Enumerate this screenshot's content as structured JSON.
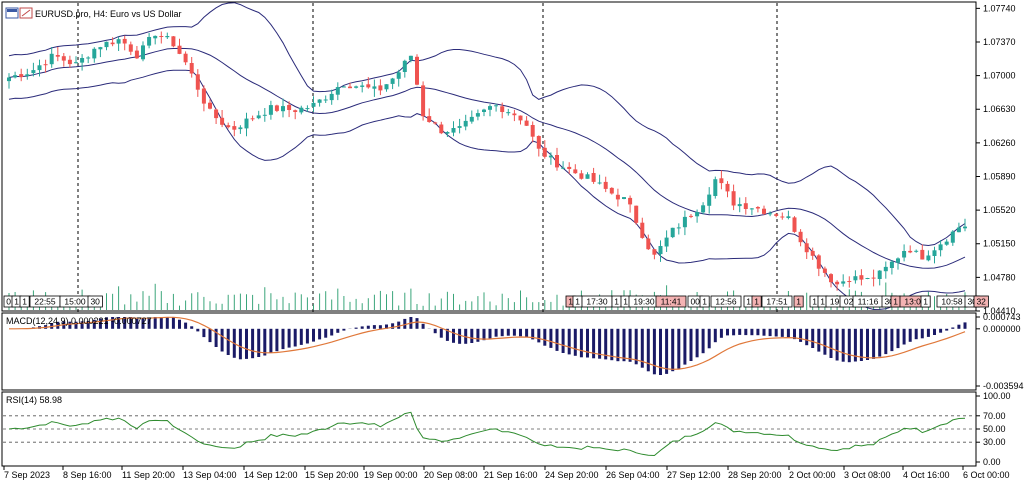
{
  "window": {
    "symbol_title": "EURUSD.pro, H4:  Euro vs US Dollar",
    "title_icon": "chart-window-icon"
  },
  "colors": {
    "bull": "#26a69a",
    "bear": "#ef5350",
    "bands": "#2b2b7a",
    "macd_hist": "#1a1a66",
    "macd_signal": "#e0783a",
    "rsi": "#2e8b2e",
    "volume": "#3aa57a",
    "tag_red": "#f4b3b3"
  },
  "chart_data": [
    {
      "type": "candlestick",
      "title": "EURUSD.pro, H4:  Euro vs US Dollar",
      "ylim": [
        1.0441,
        1.0781
      ],
      "y_ticks": [
        "1.07740",
        "1.07370",
        "1.07000",
        "1.06630",
        "1.06260",
        "1.05890",
        "1.05520",
        "1.05150",
        "1.04780",
        "1.04410"
      ],
      "overlay": "bollinger-bands",
      "close_path": [
        [
          0,
          1.0698
        ],
        [
          10,
          1.0705
        ],
        [
          20,
          1.0722
        ],
        [
          30,
          1.0712
        ],
        [
          40,
          1.0733
        ],
        [
          50,
          1.074
        ],
        [
          58,
          1.0722
        ],
        [
          66,
          1.0748
        ],
        [
          74,
          1.0735
        ],
        [
          80,
          1.0712
        ],
        [
          90,
          1.066
        ],
        [
          100,
          1.064
        ],
        [
          110,
          1.0655
        ],
        [
          118,
          1.0664
        ],
        [
          128,
          1.0662
        ],
        [
          136,
          1.0666
        ],
        [
          143,
          1.0678
        ],
        [
          150,
          1.0692
        ],
        [
          158,
          1.0688
        ],
        [
          166,
          1.0683
        ],
        [
          174,
          1.07
        ],
        [
          181,
          1.0723
        ],
        [
          186,
          1.0658
        ],
        [
          194,
          1.064
        ],
        [
          202,
          1.064
        ],
        [
          210,
          1.0654
        ],
        [
          218,
          1.0668
        ],
        [
          226,
          1.066
        ],
        [
          232,
          1.065
        ],
        [
          238,
          1.0618
        ],
        [
          246,
          1.0604
        ],
        [
          254,
          1.0594
        ],
        [
          262,
          1.0585
        ],
        [
          270,
          1.0572
        ],
        [
          278,
          1.0562
        ],
        [
          284,
          1.053
        ],
        [
          290,
          1.05
        ],
        [
          298,
          1.0528
        ],
        [
          306,
          1.0546
        ],
        [
          312,
          1.056
        ],
        [
          318,
          1.0587
        ],
        [
          326,
          1.056
        ],
        [
          334,
          1.0556
        ],
        [
          342,
          1.055
        ],
        [
          350,
          1.0545
        ],
        [
          356,
          1.052
        ],
        [
          364,
          1.0492
        ],
        [
          372,
          1.047
        ],
        [
          378,
          1.0478
        ],
        [
          386,
          1.0475
        ],
        [
          392,
          1.0482
        ],
        [
          398,
          1.0496
        ],
        [
          404,
          1.0512
        ],
        [
          410,
          1.05
        ],
        [
          416,
          1.051
        ],
        [
          422,
          1.0522
        ],
        [
          428,
          1.0535
        ]
      ],
      "x_max": 430,
      "volume_tags": [
        "0",
        "1",
        "1",
        "22:55",
        "15:00",
        "30",
        "1",
        "1",
        "17:30",
        "1",
        "1",
        "19:30",
        "11:41",
        "00",
        "1",
        "12:56",
        "1",
        "1",
        "17:51",
        "1",
        "1",
        "1",
        "19:",
        "02:",
        "11:16",
        "30",
        "1",
        "13:00",
        "1",
        "10:58",
        "30",
        "32"
      ]
    },
    {
      "type": "bar",
      "title": "MACD(12,24,9) 0.000221 -0.000727",
      "ylim": [
        -0.003594,
        0.000743
      ],
      "y_ticks": [
        "0.000743",
        "0.000000",
        "-0.003594"
      ],
      "series": [
        {
          "name": "MACD",
          "style": "histogram"
        },
        {
          "name": "Signal",
          "style": "line"
        }
      ]
    },
    {
      "type": "line",
      "title": "RSI(14) 58.98",
      "ylim": [
        0,
        100
      ],
      "y_ticks": [
        "100.00",
        "70.00",
        "50.00",
        "30.00",
        "0.00"
      ],
      "levels": [
        70,
        50,
        30
      ],
      "series": [
        {
          "name": "RSI(14)"
        }
      ],
      "x_ticks": [
        "7 Sep 2023",
        "8 Sep 16:00",
        "11 Sep 20:00",
        "13 Sep 04:00",
        "14 Sep 12:00",
        "15 Sep 20:00",
        "19 Sep 00:00",
        "20 Sep 08:00",
        "21 Sep 16:00",
        "24 Sep 20:00",
        "26 Sep 04:00",
        "27 Sep 12:00",
        "28 Sep 20:00",
        "2 Oct 00:00",
        "3 Oct 08:00",
        "4 Oct 16:00",
        "6 Oct 00:00"
      ]
    }
  ]
}
